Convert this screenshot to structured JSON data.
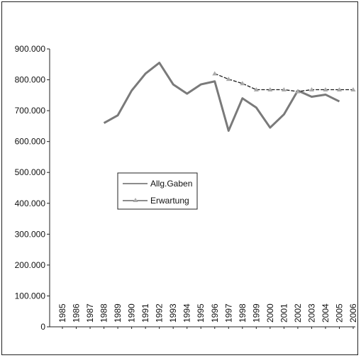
{
  "chart_data": {
    "type": "line",
    "x": [
      "1985",
      "1986",
      "1987",
      "1988",
      "1989",
      "1990",
      "1991",
      "1992",
      "1993",
      "1994",
      "1995",
      "1996",
      "1997",
      "1998",
      "1999",
      "2000",
      "2001",
      "2002",
      "2003",
      "2004",
      "2005",
      "2006"
    ],
    "series": [
      {
        "name": "Allg.Gaben",
        "color": "#7a7a7a",
        "values": [
          null,
          null,
          null,
          660000,
          685000,
          765000,
          820000,
          855000,
          785000,
          755000,
          785000,
          795000,
          635000,
          740000,
          710000,
          645000,
          688000,
          765000,
          745000,
          752000,
          730000,
          null
        ]
      },
      {
        "name": "Erwartung",
        "color": "#1a1a1a",
        "marker": "triangle",
        "values": [
          null,
          null,
          null,
          null,
          null,
          null,
          null,
          null,
          null,
          null,
          null,
          820000,
          802000,
          788000,
          768000,
          768000,
          768000,
          762000,
          768000,
          768000,
          768000,
          768000
        ]
      }
    ],
    "yticks": [
      "0",
      "100.000",
      "200.000",
      "300.000",
      "400.000",
      "500.000",
      "600.000",
      "700.000",
      "800.000",
      "900.000"
    ],
    "ylim": [
      0,
      900000
    ],
    "legend": {
      "placement": "middle-left"
    }
  }
}
